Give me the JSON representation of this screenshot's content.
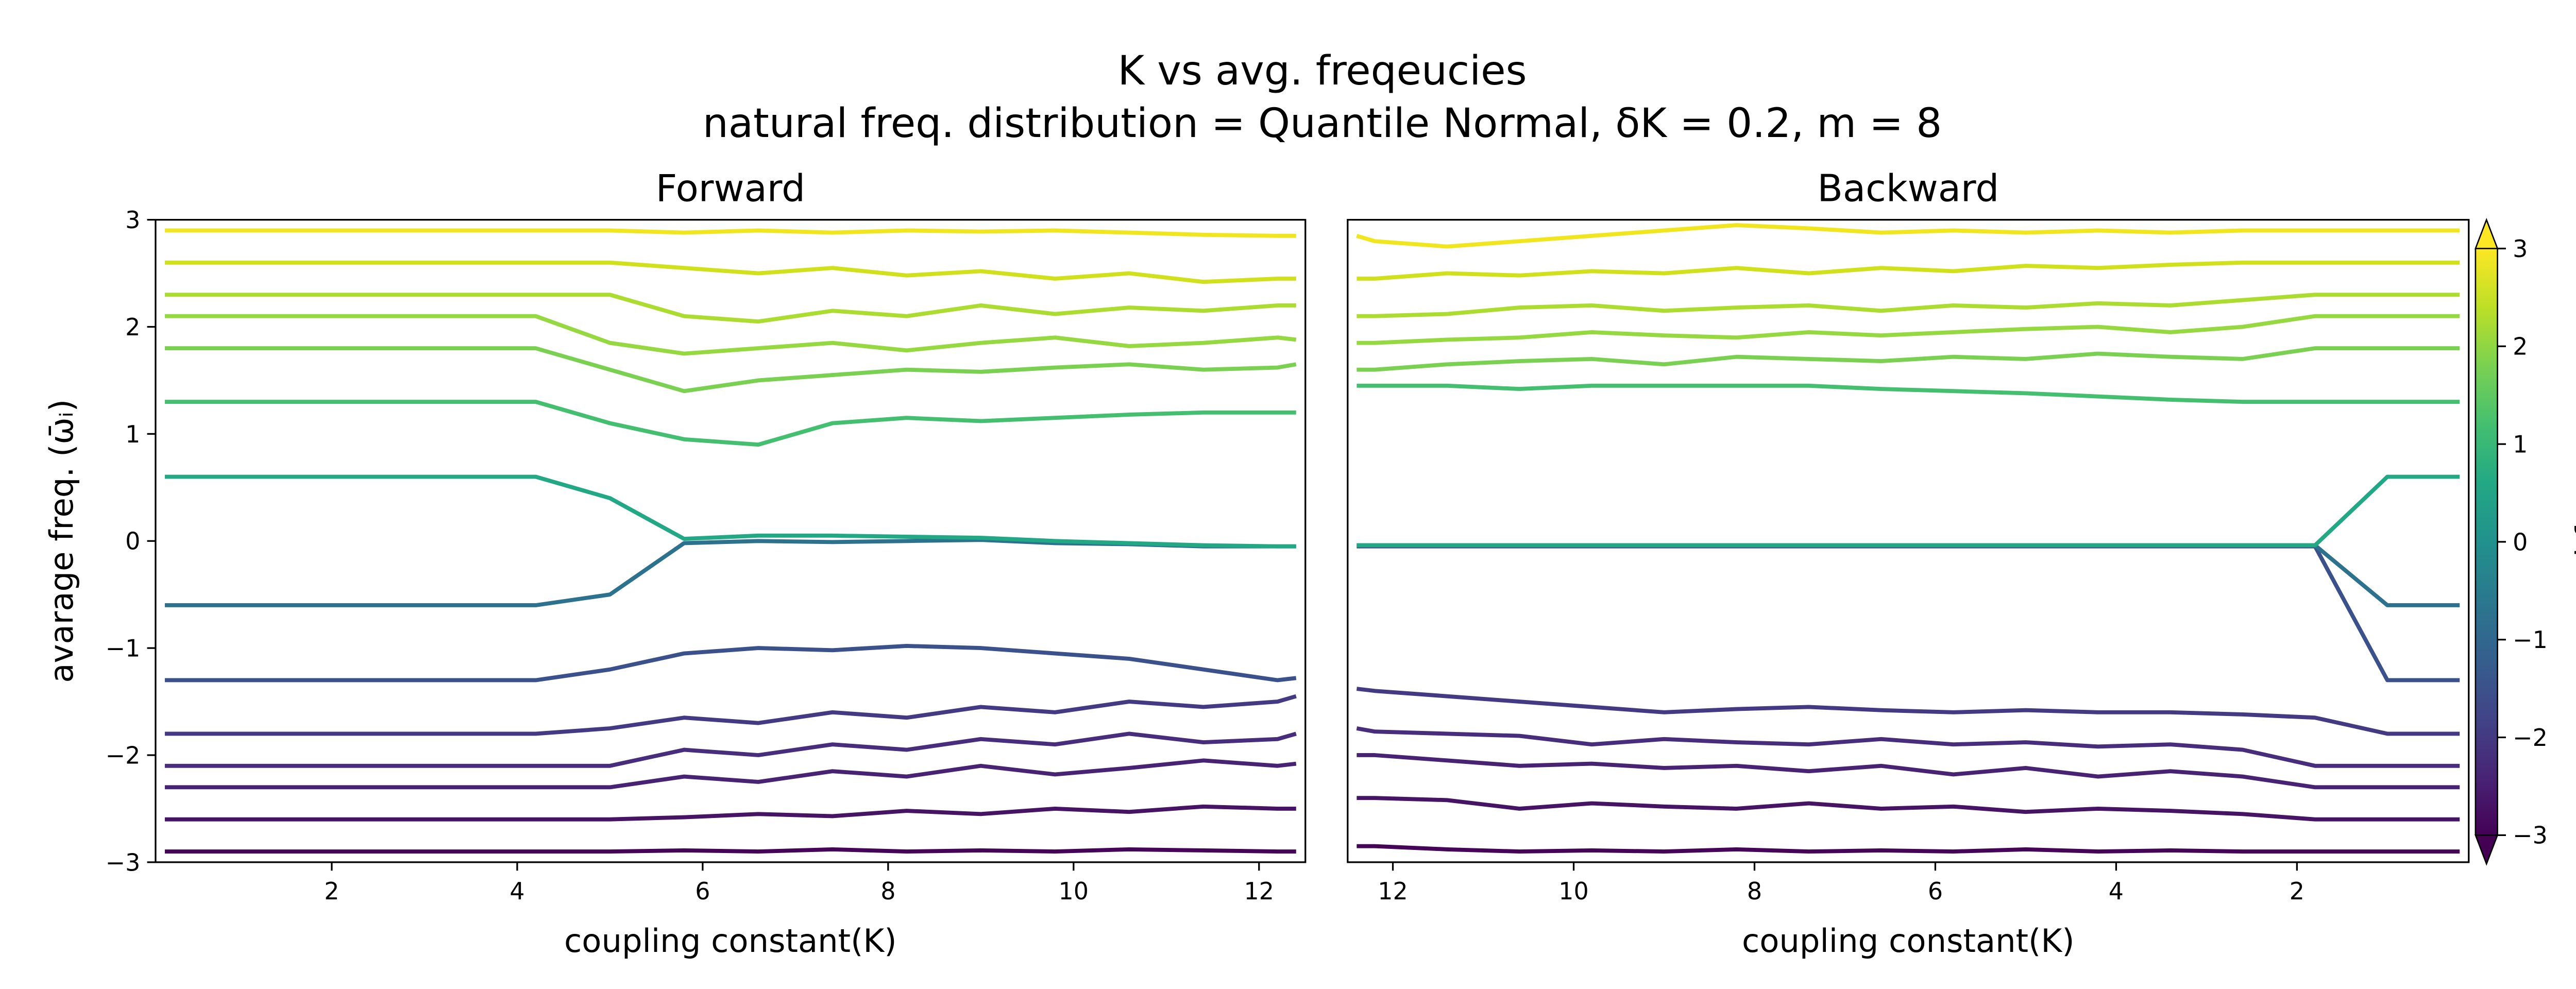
{
  "figure": {
    "title": "K vs avg. freqeucies",
    "subtitle": "natural freq. distribution = Quantile Normal, δK = 0.2, m = 8"
  },
  "colorbar": {
    "label": "natural freq. ωᵢ",
    "colormap": "viridis",
    "lim": [
      -3,
      3
    ],
    "extend": "both",
    "ticks": [
      {
        "value": -3,
        "label": "−3"
      },
      {
        "value": -2,
        "label": "−2"
      },
      {
        "value": -1,
        "label": "−1"
      },
      0,
      1,
      2,
      3
    ]
  },
  "chart_data": [
    {
      "type": "line",
      "title": "Forward",
      "xlabel": "coupling constant(K)",
      "ylabel": "avarage freq. (ω̄ᵢ)",
      "xlim": [
        0.1,
        12.5
      ],
      "ylim": [
        -3,
        3
      ],
      "xticks": [
        2,
        4,
        6,
        8,
        10,
        12
      ],
      "yticks": [
        {
          "value": -3,
          "label": "−3"
        },
        {
          "value": -2,
          "label": "−2"
        },
        {
          "value": -1,
          "label": "−1"
        },
        0,
        1,
        2,
        3
      ],
      "x": [
        0.2,
        1.0,
        1.8,
        2.6,
        3.4,
        4.2,
        5.0,
        5.8,
        6.6,
        7.4,
        8.2,
        9.0,
        9.8,
        10.6,
        11.4,
        12.2,
        12.4
      ],
      "series": [
        {
          "color": "#450457",
          "values": [
            -2.9,
            -2.9,
            -2.9,
            -2.9,
            -2.9,
            -2.9,
            -2.9,
            -2.89,
            -2.9,
            -2.88,
            -2.9,
            -2.89,
            -2.9,
            -2.88,
            -2.89,
            -2.9,
            -2.9
          ]
        },
        {
          "color": "#471365",
          "values": [
            -2.6,
            -2.6,
            -2.6,
            -2.6,
            -2.6,
            -2.6,
            -2.6,
            -2.58,
            -2.55,
            -2.57,
            -2.52,
            -2.55,
            -2.5,
            -2.53,
            -2.48,
            -2.5,
            -2.5
          ]
        },
        {
          "color": "#482374",
          "values": [
            -2.3,
            -2.3,
            -2.3,
            -2.3,
            -2.3,
            -2.3,
            -2.3,
            -2.2,
            -2.25,
            -2.15,
            -2.2,
            -2.1,
            -2.18,
            -2.12,
            -2.05,
            -2.1,
            -2.08
          ]
        },
        {
          "color": "#472d7b",
          "values": [
            -2.1,
            -2.1,
            -2.1,
            -2.1,
            -2.1,
            -2.1,
            -2.1,
            -1.95,
            -2.0,
            -1.9,
            -1.95,
            -1.85,
            -1.9,
            -1.8,
            -1.88,
            -1.85,
            -1.8
          ]
        },
        {
          "color": "#443a83",
          "values": [
            -1.8,
            -1.8,
            -1.8,
            -1.8,
            -1.8,
            -1.8,
            -1.75,
            -1.65,
            -1.7,
            -1.6,
            -1.65,
            -1.55,
            -1.6,
            -1.5,
            -1.55,
            -1.5,
            -1.45
          ]
        },
        {
          "color": "#3b518b",
          "values": [
            -1.3,
            -1.3,
            -1.3,
            -1.3,
            -1.3,
            -1.3,
            -1.2,
            -1.05,
            -1.0,
            -1.02,
            -0.98,
            -1.0,
            -1.05,
            -1.1,
            -1.2,
            -1.3,
            -1.28
          ]
        },
        {
          "color": "#2c728e",
          "values": [
            -0.6,
            -0.6,
            -0.6,
            -0.6,
            -0.6,
            -0.6,
            -0.5,
            -0.02,
            0,
            -0.01,
            0,
            0.01,
            -0.02,
            -0.03,
            -0.05,
            -0.05,
            -0.05
          ]
        },
        {
          "color": "#22a884",
          "values": [
            0.6,
            0.6,
            0.6,
            0.6,
            0.6,
            0.6,
            0.4,
            0.02,
            0.05,
            0.05,
            0.04,
            0.03,
            0,
            -0.02,
            -0.04,
            -0.05,
            -0.05
          ]
        },
        {
          "color": "#44bf70",
          "values": [
            1.3,
            1.3,
            1.3,
            1.3,
            1.3,
            1.3,
            1.1,
            0.95,
            0.9,
            1.1,
            1.15,
            1.12,
            1.15,
            1.18,
            1.2,
            1.2,
            1.2
          ]
        },
        {
          "color": "#7ad151",
          "values": [
            1.8,
            1.8,
            1.8,
            1.8,
            1.8,
            1.8,
            1.6,
            1.4,
            1.5,
            1.55,
            1.6,
            1.58,
            1.62,
            1.65,
            1.6,
            1.62,
            1.65
          ]
        },
        {
          "color": "#95d840",
          "values": [
            2.1,
            2.1,
            2.1,
            2.1,
            2.1,
            2.1,
            1.85,
            1.75,
            1.8,
            1.85,
            1.78,
            1.85,
            1.9,
            1.82,
            1.85,
            1.9,
            1.88
          ]
        },
        {
          "color": "#addc30",
          "values": [
            2.3,
            2.3,
            2.3,
            2.3,
            2.3,
            2.3,
            2.3,
            2.1,
            2.05,
            2.15,
            2.1,
            2.2,
            2.12,
            2.18,
            2.15,
            2.2,
            2.2
          ]
        },
        {
          "color": "#d0e11c",
          "values": [
            2.6,
            2.6,
            2.6,
            2.6,
            2.6,
            2.6,
            2.6,
            2.55,
            2.5,
            2.55,
            2.48,
            2.52,
            2.45,
            2.5,
            2.42,
            2.45,
            2.45
          ]
        },
        {
          "color": "#f1e51d",
          "values": [
            2.9,
            2.9,
            2.9,
            2.9,
            2.9,
            2.9,
            2.9,
            2.88,
            2.9,
            2.88,
            2.9,
            2.89,
            2.9,
            2.88,
            2.86,
            2.85,
            2.85
          ]
        }
      ]
    },
    {
      "type": "line",
      "title": "Backward",
      "xlabel": "coupling constant(K)",
      "xlim": [
        12.5,
        0.1
      ],
      "ylim": [
        -3,
        3
      ],
      "xticks": [
        12,
        10,
        8,
        6,
        4,
        2
      ],
      "x": [
        0.2,
        1.0,
        1.8,
        2.6,
        3.4,
        4.2,
        5.0,
        5.8,
        6.6,
        7.4,
        8.2,
        9.0,
        9.8,
        10.6,
        11.4,
        12.2,
        12.4
      ],
      "series": [
        {
          "color": "#450457",
          "values": [
            -2.9,
            -2.9,
            -2.9,
            -2.9,
            -2.89,
            -2.9,
            -2.88,
            -2.9,
            -2.89,
            -2.9,
            -2.88,
            -2.9,
            -2.89,
            -2.9,
            -2.88,
            -2.85,
            -2.85
          ]
        },
        {
          "color": "#471365",
          "values": [
            -2.6,
            -2.6,
            -2.6,
            -2.55,
            -2.52,
            -2.5,
            -2.53,
            -2.48,
            -2.5,
            -2.45,
            -2.5,
            -2.48,
            -2.45,
            -2.5,
            -2.42,
            -2.4,
            -2.4
          ]
        },
        {
          "color": "#482374",
          "values": [
            -2.3,
            -2.3,
            -2.3,
            -2.2,
            -2.15,
            -2.2,
            -2.12,
            -2.18,
            -2.1,
            -2.15,
            -2.1,
            -2.12,
            -2.08,
            -2.1,
            -2.05,
            -2.0,
            -2.0
          ]
        },
        {
          "color": "#472d7b",
          "values": [
            -2.1,
            -2.1,
            -2.1,
            -1.95,
            -1.9,
            -1.92,
            -1.88,
            -1.9,
            -1.85,
            -1.9,
            -1.88,
            -1.85,
            -1.9,
            -1.82,
            -1.8,
            -1.78,
            -1.75
          ]
        },
        {
          "color": "#443a83",
          "values": [
            -1.8,
            -1.8,
            -1.65,
            -1.62,
            -1.6,
            -1.6,
            -1.58,
            -1.6,
            -1.58,
            -1.55,
            -1.57,
            -1.6,
            -1.55,
            -1.5,
            -1.45,
            -1.4,
            -1.38
          ]
        },
        {
          "color": "#3b518b",
          "values": [
            -1.3,
            -1.3,
            -0.05,
            -0.05,
            -0.05,
            -0.05,
            -0.05,
            -0.05,
            -0.05,
            -0.05,
            -0.05,
            -0.05,
            -0.05,
            -0.05,
            -0.05,
            -0.05,
            -0.05
          ]
        },
        {
          "color": "#2c728e",
          "values": [
            -0.6,
            -0.6,
            -0.04,
            -0.04,
            -0.04,
            -0.04,
            -0.04,
            -0.04,
            -0.04,
            -0.04,
            -0.04,
            -0.04,
            -0.04,
            -0.04,
            -0.04,
            -0.04,
            -0.04
          ]
        },
        {
          "color": "#22a884",
          "values": [
            0.6,
            0.6,
            -0.04,
            -0.04,
            -0.04,
            -0.04,
            -0.04,
            -0.04,
            -0.04,
            -0.04,
            -0.04,
            -0.04,
            -0.04,
            -0.04,
            -0.04,
            -0.04,
            -0.04
          ]
        },
        {
          "color": "#44bf70",
          "values": [
            1.3,
            1.3,
            1.3,
            1.3,
            1.32,
            1.35,
            1.38,
            1.4,
            1.42,
            1.45,
            1.45,
            1.45,
            1.45,
            1.42,
            1.45,
            1.45,
            1.45
          ]
        },
        {
          "color": "#7ad151",
          "values": [
            1.8,
            1.8,
            1.8,
            1.7,
            1.72,
            1.75,
            1.7,
            1.72,
            1.68,
            1.7,
            1.72,
            1.65,
            1.7,
            1.68,
            1.65,
            1.6,
            1.6
          ]
        },
        {
          "color": "#95d840",
          "values": [
            2.1,
            2.1,
            2.1,
            2.0,
            1.95,
            2.0,
            1.98,
            1.95,
            1.92,
            1.95,
            1.9,
            1.92,
            1.95,
            1.9,
            1.88,
            1.85,
            1.85
          ]
        },
        {
          "color": "#addc30",
          "values": [
            2.3,
            2.3,
            2.3,
            2.25,
            2.2,
            2.22,
            2.18,
            2.2,
            2.15,
            2.2,
            2.18,
            2.15,
            2.2,
            2.18,
            2.12,
            2.1,
            2.1
          ]
        },
        {
          "color": "#d0e11c",
          "values": [
            2.6,
            2.6,
            2.6,
            2.6,
            2.58,
            2.55,
            2.57,
            2.52,
            2.55,
            2.5,
            2.55,
            2.5,
            2.52,
            2.48,
            2.5,
            2.45,
            2.45
          ]
        },
        {
          "color": "#f1e51d",
          "values": [
            2.9,
            2.9,
            2.9,
            2.9,
            2.88,
            2.9,
            2.88,
            2.9,
            2.88,
            2.92,
            2.95,
            2.9,
            2.85,
            2.8,
            2.75,
            2.8,
            2.85
          ]
        }
      ]
    }
  ]
}
